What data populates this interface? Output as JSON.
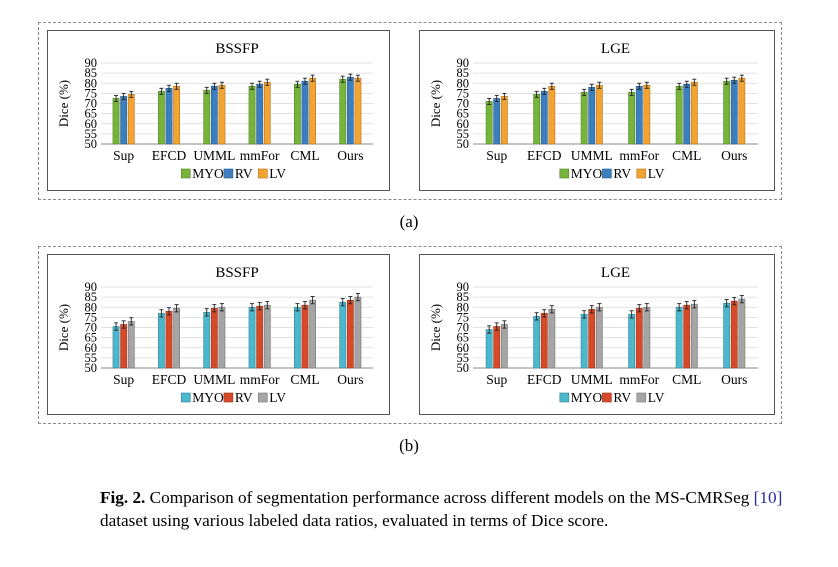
{
  "sublabels": {
    "a": "(a)",
    "b": "(b)"
  },
  "caption": {
    "label": "Fig. 2.",
    "text_before": "Comparison of segmentation performance across different models on the MS-CMRSeg ",
    "cite": "[10]",
    "text_after": " dataset using various labeled data ratios, evaluated in terms of Dice score."
  },
  "colors": {
    "set_a": {
      "MYO": "#76b53a",
      "RV": "#3c7fbf",
      "LV": "#f4a330"
    },
    "set_b": {
      "MYO": "#4bb8cd",
      "RV": "#d64a2a",
      "LV": "#a5a5a5"
    }
  },
  "chart_data": [
    {
      "id": "a-bssfp",
      "panel": "(a)",
      "type": "bar",
      "title": "BSSFP",
      "ylabel": "Dice (%)",
      "ylim": [
        50,
        90
      ],
      "yticks": [
        50,
        55,
        60,
        65,
        70,
        75,
        80,
        85,
        90
      ],
      "categories": [
        "Sup",
        "EFCD",
        "UMML",
        "mmFor",
        "CML",
        "Ours"
      ],
      "color_set": "set_a",
      "series": [
        {
          "name": "MYO",
          "values": [
            72.5,
            76,
            76.5,
            78.5,
            79.5,
            82
          ]
        },
        {
          "name": "RV",
          "values": [
            73.5,
            77.5,
            78.5,
            79.5,
            81,
            83
          ]
        },
        {
          "name": "LV",
          "values": [
            74.5,
            78.5,
            79,
            80.5,
            82.5,
            82.5
          ]
        }
      ],
      "errors": 1.5
    },
    {
      "id": "a-lge",
      "panel": "(a)",
      "type": "bar",
      "title": "LGE",
      "ylabel": "Dice (%)",
      "ylim": [
        50,
        90
      ],
      "yticks": [
        50,
        55,
        60,
        65,
        70,
        75,
        80,
        85,
        90
      ],
      "categories": [
        "Sup",
        "EFCD",
        "UMML",
        "mmFor",
        "CML",
        "Ours"
      ],
      "color_set": "set_a",
      "series": [
        {
          "name": "MYO",
          "values": [
            71,
            74.5,
            75.5,
            75.5,
            78.5,
            81
          ]
        },
        {
          "name": "RV",
          "values": [
            72.5,
            76,
            78,
            78.5,
            79.5,
            81.5
          ]
        },
        {
          "name": "LV",
          "values": [
            73.5,
            78.5,
            79,
            79,
            80.5,
            82.5
          ]
        }
      ],
      "errors": 1.5
    },
    {
      "id": "b-bssfp",
      "panel": "(b)",
      "type": "bar",
      "title": "BSSFP",
      "ylabel": "Dice (%)",
      "ylim": [
        50,
        90
      ],
      "yticks": [
        50,
        55,
        60,
        65,
        70,
        75,
        80,
        85,
        90
      ],
      "categories": [
        "Sup",
        "EFCD",
        "UMML",
        "mmFor",
        "CML",
        "Ours"
      ],
      "color_set": "set_b",
      "series": [
        {
          "name": "MYO",
          "values": [
            70.5,
            77,
            77.5,
            80,
            80,
            82.5
          ]
        },
        {
          "name": "RV",
          "values": [
            71.5,
            78,
            79.5,
            80.5,
            81,
            83.5
          ]
        },
        {
          "name": "LV",
          "values": [
            73,
            79.5,
            80,
            81,
            83.5,
            85
          ]
        }
      ],
      "errors": 1.8
    },
    {
      "id": "b-lge",
      "panel": "(b)",
      "type": "bar",
      "title": "LGE",
      "ylabel": "Dice (%)",
      "ylim": [
        50,
        90
      ],
      "yticks": [
        50,
        55,
        60,
        65,
        70,
        75,
        80,
        85,
        90
      ],
      "categories": [
        "Sup",
        "EFCD",
        "UMML",
        "mmFor",
        "CML",
        "Ours"
      ],
      "color_set": "set_b",
      "series": [
        {
          "name": "MYO",
          "values": [
            69,
            75.5,
            76.5,
            76.5,
            80,
            82
          ]
        },
        {
          "name": "RV",
          "values": [
            70.5,
            77,
            79,
            79.5,
            81,
            83
          ]
        },
        {
          "name": "LV",
          "values": [
            71.5,
            79,
            80,
            80,
            81.5,
            84
          ]
        }
      ],
      "errors": 1.8
    }
  ]
}
